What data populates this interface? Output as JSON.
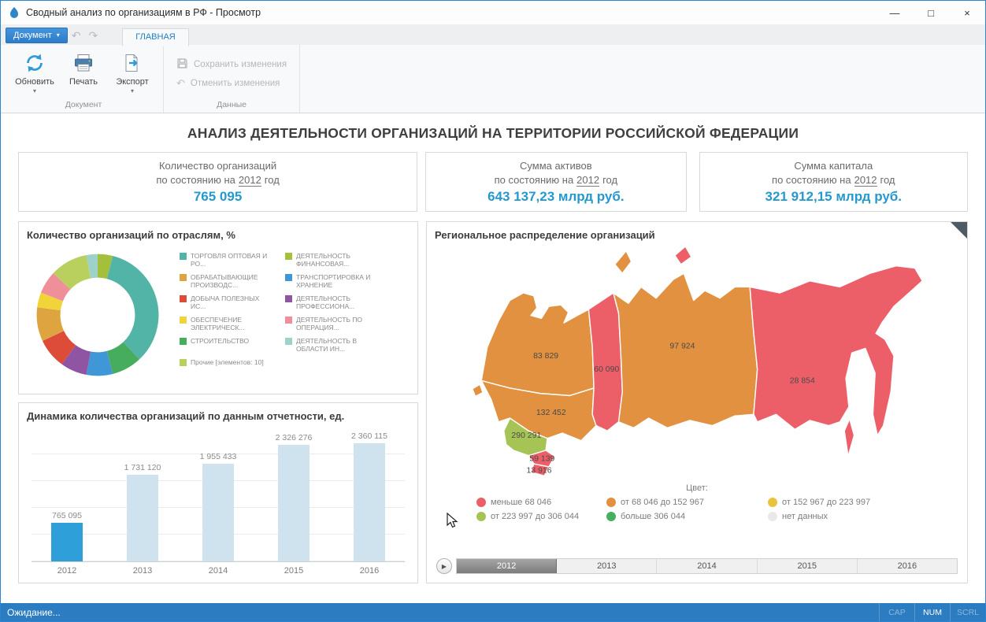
{
  "window": {
    "title": "Сводный анализ по организациям в РФ - Просмотр"
  },
  "icon_glyphs": {
    "minimize": "—",
    "maximize": "□",
    "close": "×",
    "dropdown_arrow": "▾",
    "undo": "↶",
    "redo": "↷",
    "play": "▶"
  },
  "ribbon": {
    "document_button_label": "Документ",
    "tab": "ГЛАВНАЯ",
    "refresh_label": "Обновить",
    "print_label": "Печать",
    "export_label": "Экспорт",
    "save_label": "Сохранить изменения",
    "cancel_label": "Отменить изменения",
    "group_document": "Документ",
    "group_data": "Данные"
  },
  "page_title": "АНАЛИЗ ДЕЯТЕЛЬНОСТИ ОРГАНИЗАЦИЙ НА ТЕРРИТОРИИ РОССИЙСКОЙ ФЕДЕРАЦИИ",
  "kpi_cards": [
    {
      "title_line1": "Количество организаций",
      "line2_prefix": "по состоянию на",
      "year": "2012",
      "line2_suffix": "год",
      "value": "765 095"
    },
    {
      "title_line1": "Сумма активов",
      "line2_prefix": "по состоянию на",
      "year": "2012",
      "line2_suffix": "год",
      "value": "643 137,23 млрд руб."
    },
    {
      "title_line1": "Сумма капитала",
      "line2_prefix": "по состоянию на",
      "year": "2012",
      "line2_suffix": "год",
      "value": "321 912,15 млрд руб."
    }
  ],
  "pie_panel": {
    "title": "Количество организаций по отраслям, %",
    "chart_data": {
      "type": "pie",
      "slices": [
        {
          "label": "ТОРГОВЛЯ ОПТОВАЯ И РО...",
          "color": "#52b3a7",
          "value": 34
        },
        {
          "label": "ОБРАБАТЫВАЮЩИЕ ПРОИЗВОДС...",
          "color": "#dda440",
          "value": 9
        },
        {
          "label": "ДОБЫЧА ПОЛЕЗНЫХ ИС...",
          "color": "#dd4b39",
          "value": 8
        },
        {
          "label": "ОБЕСПЕЧЕНИЕ ЭЛЕКТРИЧЕСК...",
          "color": "#f0d43a",
          "value": 4
        },
        {
          "label": "СТРОИТЕЛЬСТВО",
          "color": "#46ad5e",
          "value": 8
        },
        {
          "label": "Прочие [элементов: 10]",
          "color": "#b9d05f",
          "value": 10
        },
        {
          "label": "ДЕЯТЕЛЬНОСТЬ ФИНАНСОВАЯ...",
          "color": "#a3bf3b",
          "value": 4
        },
        {
          "label": "ТРАНСПОРТИРОВКА И ХРАНЕНИЕ",
          "color": "#3f97d8",
          "value": 7
        },
        {
          "label": "ДЕЯТЕЛЬНОСТЬ ПРОФЕССИОНА...",
          "color": "#9055a2",
          "value": 7
        },
        {
          "label": "ДЕЯТЕЛЬНОСТЬ ПО ОПЕРАЦИЯ...",
          "color": "#ef8f99",
          "value": 6
        },
        {
          "label": "ДЕЯТЕЛЬНОСТЬ В ОБЛАСТИ ИН...",
          "color": "#9ed1c8",
          "value": 3
        }
      ],
      "draw_order": [
        6,
        0,
        4,
        7,
        8,
        2,
        1,
        3,
        9,
        5,
        10
      ]
    }
  },
  "bar_panel": {
    "title": "Динамика количества организаций по данным отчетности, ед.",
    "chart_data": {
      "type": "bar",
      "categories": [
        "2012",
        "2013",
        "2014",
        "2015",
        "2016"
      ],
      "values": [
        765095,
        1731120,
        1955433,
        2326276,
        2360115
      ],
      "value_labels": [
        "765 095",
        "1 731 120",
        "1 955 433",
        "2 326 276",
        "2 360 115"
      ],
      "highlight_index": 0,
      "highlight_color": "#2e9fd8",
      "bar_color": "#cfe3ef"
    }
  },
  "map_panel": {
    "title": "Региональное распределение организаций",
    "legend_title": "Цвет:",
    "legend": [
      {
        "label": "меньше 68 046",
        "color": "#ed5f68"
      },
      {
        "label": "от 68 046 до 152 967",
        "color": "#e1913f"
      },
      {
        "label": "от 152 967 до 223 997",
        "color": "#e8c33d"
      },
      {
        "label": "от 223 997 до 306 044",
        "color": "#a6c455"
      },
      {
        "label": "больше 306 044",
        "color": "#47b05f"
      },
      {
        "label": "нет данных",
        "color": "#e9e9e9"
      }
    ],
    "regions": [
      {
        "name": "northwest",
        "label": "83 829",
        "color": "#e1913f"
      },
      {
        "name": "volga",
        "label": "132 452",
        "color": "#e1913f"
      },
      {
        "name": "south",
        "label": "290 291",
        "color": "#a6c455"
      },
      {
        "name": "caucasus-a",
        "label": "59 139",
        "color": "#ed5f68"
      },
      {
        "name": "caucasus-b",
        "label": "13 916",
        "color": "#ed5f68"
      },
      {
        "name": "ural",
        "label": "60 090",
        "color": "#ed5f68"
      },
      {
        "name": "siberia",
        "label": "97 924",
        "color": "#e1913f"
      },
      {
        "name": "far-east",
        "label": "28 854",
        "color": "#ed5f68"
      }
    ],
    "islands": [
      {
        "name": "novaya-zemlya",
        "color": "#e1913f"
      },
      {
        "name": "severnaya-zemlya",
        "color": "#ed5f68"
      },
      {
        "name": "sakhalin",
        "color": "#ed5f68"
      },
      {
        "name": "kaliningrad",
        "color": "#e1913f"
      }
    ],
    "timeline": {
      "years": [
        "2012",
        "2013",
        "2014",
        "2015",
        "2016"
      ],
      "selected": "2012"
    }
  },
  "statusbar": {
    "text": "Ожидание...",
    "indicators": [
      {
        "label": "CAP",
        "active": false
      },
      {
        "label": "NUM",
        "active": true
      },
      {
        "label": "SCRL",
        "active": false
      }
    ]
  }
}
